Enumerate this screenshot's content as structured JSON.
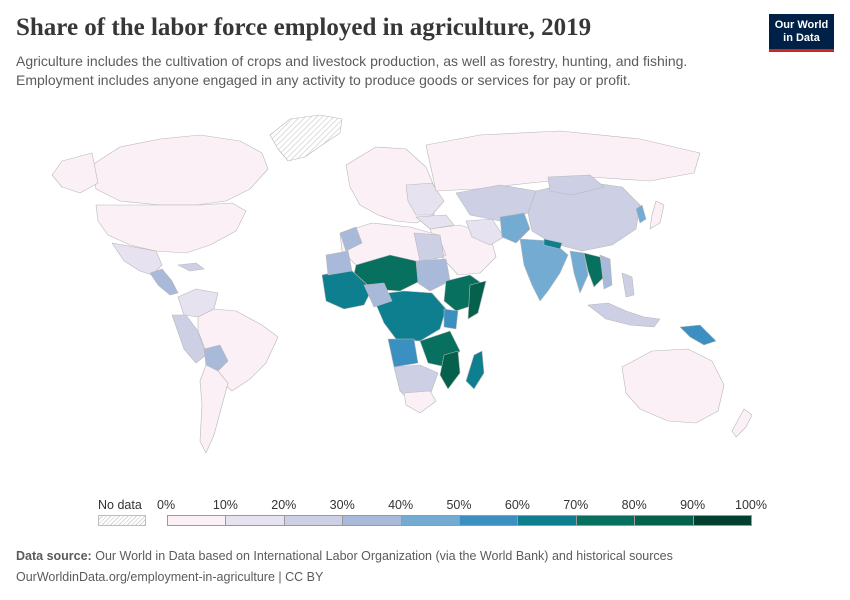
{
  "header": {
    "title": "Share of the labor force employed in agriculture, 2019",
    "subtitle": "Agriculture includes the cultivation of crops and livestock production, as well as forestry, hunting, and fishing. Employment includes anyone engaged in any activity to produce goods or services for pay or profit.",
    "logo_line1": "Our World",
    "logo_line2": "in Data"
  },
  "legend": {
    "no_data_label": "No data",
    "ticks": [
      "0%",
      "10%",
      "20%",
      "30%",
      "40%",
      "50%",
      "60%",
      "70%",
      "80%",
      "90%",
      "100%"
    ],
    "colors": [
      "#fbf0f6",
      "#e6e2f0",
      "#cdd0e5",
      "#a9b9d9",
      "#73abd3",
      "#3c8fc1",
      "#0e7f8f",
      "#08705f",
      "#05614b",
      "#033f2e"
    ]
  },
  "footer": {
    "source_label": "Data source:",
    "source_text": "Our World in Data based on International Labor Organization (via the World Bank) and historical sources",
    "url_text": "OurWorldinData.org/employment-in-agriculture | CC BY"
  }
}
